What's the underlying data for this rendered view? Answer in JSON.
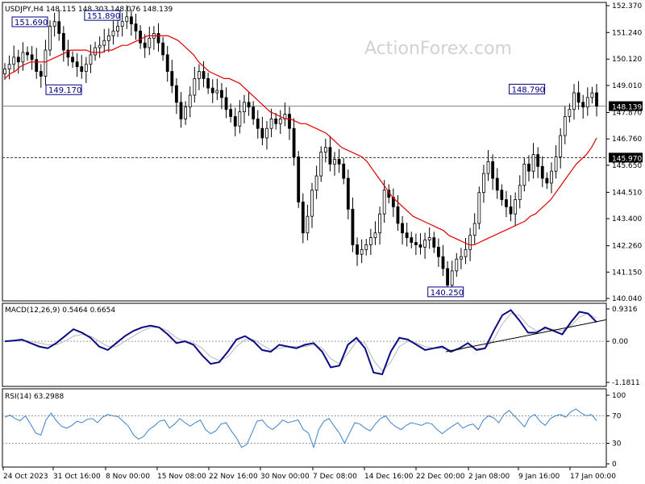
{
  "watermark": "ActionForex.com",
  "colors": {
    "price": "#000000",
    "sma": "#e00000",
    "macd": "#0b0b85",
    "signal": "#b8b8b8",
    "rsi": "#3c82c8",
    "frame": "#000000",
    "anno_border": "#000080",
    "anno_text": "#000080",
    "hline": "#888888"
  },
  "chart_data": [
    {
      "type": "candlestick",
      "title": "USDJPY,H4  148.115 148.303 148.076 148.139",
      "yticks": [
        "152.370",
        "151.240",
        "150.120",
        "149.010",
        "147.870",
        "146.760",
        "145.650",
        "144.510",
        "143.400",
        "142.260",
        "141.150",
        "140.040"
      ],
      "ylim": [
        140.04,
        152.37
      ],
      "last_price": "148.139",
      "level_line": "145.970",
      "annotations": [
        {
          "text": "151.690",
          "value": 151.69
        },
        {
          "text": "151.890",
          "value": 151.89
        },
        {
          "text": "149.170",
          "value": 149.17
        },
        {
          "text": "148.790",
          "value": 148.79
        },
        {
          "text": "140.250",
          "value": 140.25
        }
      ],
      "series": [
        {
          "name": "close",
          "values": [
            149.7,
            149.9,
            150.2,
            150.0,
            150.4,
            150.3,
            150.1,
            149.6,
            149.4,
            150.5,
            151.5,
            151.7,
            151.2,
            150.5,
            150.2,
            150.0,
            149.8,
            149.6,
            149.9,
            150.3,
            150.6,
            150.7,
            150.9,
            151.1,
            151.3,
            151.5,
            151.7,
            151.9,
            151.6,
            151.3,
            150.8,
            150.6,
            151.0,
            151.2,
            150.8,
            150.3,
            149.6,
            149.0,
            148.3,
            147.6,
            148.1,
            148.6,
            149.3,
            149.6,
            149.3,
            148.9,
            148.7,
            148.8,
            148.5,
            148.0,
            147.7,
            147.3,
            147.9,
            148.3,
            148.1,
            147.6,
            147.2,
            146.8,
            147.2,
            147.6,
            147.4,
            147.6,
            147.8,
            147.2,
            146.0,
            144.1,
            142.8,
            143.5,
            144.6,
            145.2,
            146.2,
            146.4,
            145.7,
            145.9,
            145.7,
            145.1,
            143.8,
            142.3,
            141.9,
            142.1,
            142.3,
            142.6,
            142.8,
            143.6,
            144.6,
            144.3,
            143.9,
            143.2,
            142.8,
            142.6,
            142.4,
            142.3,
            142.2,
            142.5,
            142.6,
            142.2,
            141.8,
            141.3,
            140.6,
            141.2,
            141.7,
            141.8,
            142.1,
            142.7,
            143.2,
            144.5,
            145.3,
            145.8,
            145.1,
            144.6,
            144.2,
            143.9,
            143.6,
            144.2,
            144.8,
            145.7,
            145.4,
            146.1,
            145.6,
            145.1,
            144.9,
            145.4,
            146.0,
            146.9,
            147.7,
            148.0,
            148.7,
            148.3,
            148.1,
            148.5,
            148.7,
            148.139
          ]
        },
        {
          "name": "SMA",
          "values": [
            149.3,
            149.5,
            149.6,
            149.8,
            149.9,
            150.0,
            150.0,
            150.0,
            150.0,
            150.1,
            150.2,
            150.3,
            150.4,
            150.5,
            150.5,
            150.5,
            150.5,
            150.4,
            150.4,
            150.4,
            150.5,
            150.5,
            150.6,
            150.7,
            150.7,
            150.8,
            150.9,
            151.0,
            151.1,
            151.1,
            151.1,
            151.1,
            151.1,
            151.0,
            150.9,
            150.7,
            150.5,
            150.3,
            150.0,
            149.8,
            149.6,
            149.5,
            149.4,
            149.3,
            149.3,
            149.2,
            149.1,
            148.9,
            148.7,
            148.5,
            148.3,
            148.1,
            147.9,
            147.8,
            147.7,
            147.6,
            147.6,
            147.5,
            147.4,
            147.4,
            147.3,
            147.2,
            147.1,
            147.0,
            146.8,
            146.6,
            146.4,
            146.3,
            146.2,
            146.1,
            146.0,
            145.8,
            145.5,
            145.2,
            144.9,
            144.6,
            144.3,
            144.1,
            143.9,
            143.7,
            143.5,
            143.4,
            143.3,
            143.2,
            143.1,
            143.0,
            142.9,
            142.7,
            142.6,
            142.5,
            142.4,
            142.3,
            142.3,
            142.4,
            142.5,
            142.6,
            142.7,
            142.8,
            142.9,
            143.0,
            143.1,
            143.2,
            143.3,
            143.5,
            143.6,
            143.8,
            144.0,
            144.2,
            144.5,
            144.8,
            145.1,
            145.4,
            145.7,
            145.9,
            146.1,
            146.4,
            146.8
          ]
        }
      ]
    },
    {
      "type": "line",
      "title": "MACD(12,26,9) 0.5464 0.6654",
      "yticks": [
        "0.9316",
        "0.00",
        "-1.1811"
      ],
      "ylim": [
        -1.1811,
        0.9316
      ],
      "trendline": [
        [
          -0.3,
          0.62
        ]
      ],
      "series": [
        {
          "name": "MACD",
          "values": [
            0.0,
            0.02,
            0.05,
            -0.05,
            -0.15,
            -0.2,
            -0.05,
            0.15,
            0.35,
            0.25,
            0.1,
            -0.15,
            -0.25,
            -0.05,
            0.15,
            0.3,
            0.4,
            0.45,
            0.4,
            0.2,
            -0.05,
            0.0,
            -0.1,
            -0.4,
            -0.65,
            -0.6,
            -0.3,
            0.05,
            0.15,
            0.0,
            -0.25,
            -0.3,
            -0.1,
            -0.15,
            -0.2,
            -0.1,
            -0.05,
            -0.3,
            -0.75,
            -0.7,
            -0.1,
            0.1,
            -0.2,
            -0.9,
            -0.95,
            -0.3,
            0.1,
            0.05,
            -0.1,
            -0.25,
            -0.2,
            -0.15,
            -0.3,
            -0.2,
            -0.05,
            -0.25,
            -0.2,
            0.3,
            0.75,
            0.9,
            0.6,
            0.25,
            0.25,
            0.4,
            0.3,
            0.2,
            0.55,
            0.85,
            0.8,
            0.55
          ]
        },
        {
          "name": "Signal",
          "values": [
            0.0,
            0.01,
            0.02,
            0.0,
            -0.05,
            -0.1,
            -0.1,
            0.0,
            0.15,
            0.2,
            0.15,
            0.0,
            -0.15,
            -0.15,
            0.0,
            0.15,
            0.3,
            0.4,
            0.4,
            0.3,
            0.1,
            0.0,
            -0.05,
            -0.2,
            -0.45,
            -0.55,
            -0.45,
            -0.15,
            0.05,
            0.05,
            -0.1,
            -0.25,
            -0.2,
            -0.15,
            -0.15,
            -0.15,
            -0.1,
            -0.2,
            -0.5,
            -0.65,
            -0.35,
            0.0,
            -0.05,
            -0.55,
            -0.85,
            -0.6,
            -0.15,
            0.0,
            -0.05,
            -0.15,
            -0.2,
            -0.2,
            -0.25,
            -0.25,
            -0.15,
            -0.2,
            -0.2,
            0.05,
            0.5,
            0.8,
            0.75,
            0.45,
            0.3,
            0.35,
            0.35,
            0.3,
            0.45,
            0.7,
            0.8,
            0.67
          ]
        }
      ]
    },
    {
      "type": "line",
      "title": "RSI(14) 63.2988",
      "yticks": [
        "100",
        "70",
        "30",
        "0"
      ],
      "ylim": [
        0,
        100
      ],
      "series": [
        {
          "name": "RSI",
          "values": [
            68,
            71,
            66,
            63,
            70,
            58,
            45,
            42,
            64,
            74,
            63,
            55,
            52,
            56,
            62,
            60,
            65,
            66,
            60,
            68,
            72,
            70,
            69,
            62,
            55,
            42,
            36,
            40,
            50,
            55,
            62,
            64,
            52,
            58,
            66,
            60,
            55,
            60,
            64,
            50,
            44,
            48,
            58,
            60,
            48,
            38,
            24,
            28,
            45,
            62,
            64,
            55,
            50,
            56,
            64,
            60,
            62,
            64,
            50,
            45,
            24,
            50,
            62,
            66,
            55,
            45,
            30,
            45,
            60,
            58,
            52,
            48,
            58,
            66,
            70,
            60,
            54,
            50,
            56,
            60,
            58,
            56,
            60,
            58,
            50,
            44,
            50,
            55,
            60,
            52,
            56,
            58,
            50,
            64,
            70,
            67,
            60,
            72,
            78,
            70,
            62,
            54,
            68,
            72,
            62,
            56,
            66,
            70,
            72,
            68,
            76,
            80,
            74,
            70,
            72,
            63
          ]
        }
      ]
    }
  ],
  "xticks": [
    "24 Oct 2023",
    "31 Oct 16:00",
    "8 Nov 00:00",
    "15 Nov 08:00",
    "22 Nov 16:00",
    "30 Nov 00:00",
    "7 Dec 08:00",
    "14 Dec 16:00",
    "22 Dec 00:00",
    "2 Jan 08:00",
    "9 Jan 16:00",
    "17 Jan 00:00"
  ]
}
